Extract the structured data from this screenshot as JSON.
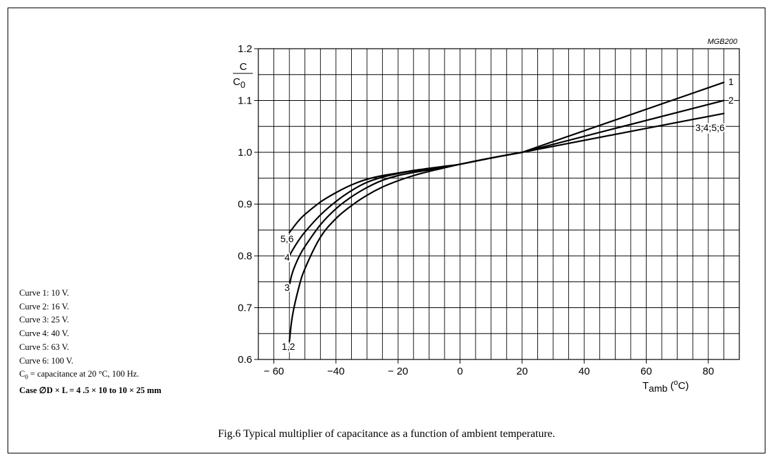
{
  "figure": {
    "code": "MGB200",
    "caption": "Fig.6  Typical multiplier of capacitance as a function of ambient temperature."
  },
  "notes": {
    "curve1": "Curve 1: 10 V.",
    "curve2": "Curve 2: 16 V.",
    "curve3": "Curve 3: 25 V.",
    "curve4": "Curve 4: 40 V.",
    "curve5": "Curve 5: 63 V.",
    "curve6": "Curve 6: 100 V.",
    "c0_sym": "C",
    "c0_sub": "0",
    "c0_text": " = capacitance at 20 °C, 100 Hz.",
    "case": "Case ∅D × L = 4 .5 × 10 to 10 × 25 mm"
  },
  "chart_data": {
    "type": "line",
    "title": "",
    "xlabel": {
      "main": "T",
      "sub": "amb",
      "unit_open": " (",
      "unit_sup": "o",
      "unit_close": "C)"
    },
    "ylabel": {
      "num": "C",
      "den": "C",
      "den_sub": "0"
    },
    "xlim": [
      -65,
      90
    ],
    "ylim": [
      0.6,
      1.2
    ],
    "xticks": [
      -60,
      -40,
      -20,
      0,
      20,
      40,
      60,
      80
    ],
    "xtick_labels": [
      "− 60",
      "−40",
      "− 20",
      "0",
      "20",
      "40",
      "60",
      "80"
    ],
    "yticks": [
      0.6,
      0.7,
      0.8,
      0.9,
      1.0,
      1.1,
      1.2
    ],
    "ytick_labels": [
      "0.6",
      "0.7",
      "0.8",
      "0.9",
      "1.0",
      "1.1",
      "1.2"
    ],
    "grid": true,
    "series": [
      {
        "name": "1,2",
        "end_labels": [
          "1",
          "2"
        ],
        "x": [
          -55,
          -54,
          -52,
          -50,
          -45,
          -40,
          -35,
          -30,
          -25,
          -20,
          -15,
          -10,
          -5,
          0,
          10,
          20
        ],
        "y": [
          0.635,
          0.685,
          0.738,
          0.775,
          0.836,
          0.872,
          0.897,
          0.917,
          0.933,
          0.945,
          0.955,
          0.963,
          0.97,
          0.977,
          0.989,
          1.0
        ]
      },
      {
        "name": "3",
        "x": [
          -55,
          -54,
          -52,
          -50,
          -45,
          -40,
          -35,
          -30,
          -25,
          -20,
          -15,
          -10,
          -5,
          0,
          10,
          20
        ],
        "y": [
          0.743,
          0.768,
          0.797,
          0.818,
          0.86,
          0.891,
          0.914,
          0.932,
          0.946,
          0.955,
          0.961,
          0.966,
          0.971,
          0.977,
          0.989,
          1.0
        ]
      },
      {
        "name": "4",
        "x": [
          -55,
          -54,
          -52,
          -50,
          -45,
          -40,
          -35,
          -30,
          -25,
          -20,
          -15,
          -10,
          -5,
          0,
          10,
          20
        ],
        "y": [
          0.8,
          0.811,
          0.83,
          0.846,
          0.879,
          0.905,
          0.926,
          0.942,
          0.952,
          0.959,
          0.964,
          0.968,
          0.972,
          0.977,
          0.989,
          1.0
        ]
      },
      {
        "name": "5,6",
        "x": [
          -55,
          -54,
          -52,
          -50,
          -45,
          -40,
          -35,
          -30,
          -25,
          -20,
          -15,
          -10,
          -5,
          0,
          10,
          20
        ],
        "y": [
          0.845,
          0.853,
          0.868,
          0.88,
          0.904,
          0.922,
          0.937,
          0.948,
          0.955,
          0.96,
          0.965,
          0.969,
          0.973,
          0.977,
          0.989,
          1.0
        ]
      },
      {
        "name": "1",
        "x": [
          20,
          85
        ],
        "y": [
          1.0,
          1.135
        ]
      },
      {
        "name": "2",
        "x": [
          20,
          85
        ],
        "y": [
          1.0,
          1.1
        ]
      },
      {
        "name": "3,4,5,6",
        "x": [
          20,
          85
        ],
        "y": [
          1.0,
          1.075
        ]
      }
    ]
  }
}
